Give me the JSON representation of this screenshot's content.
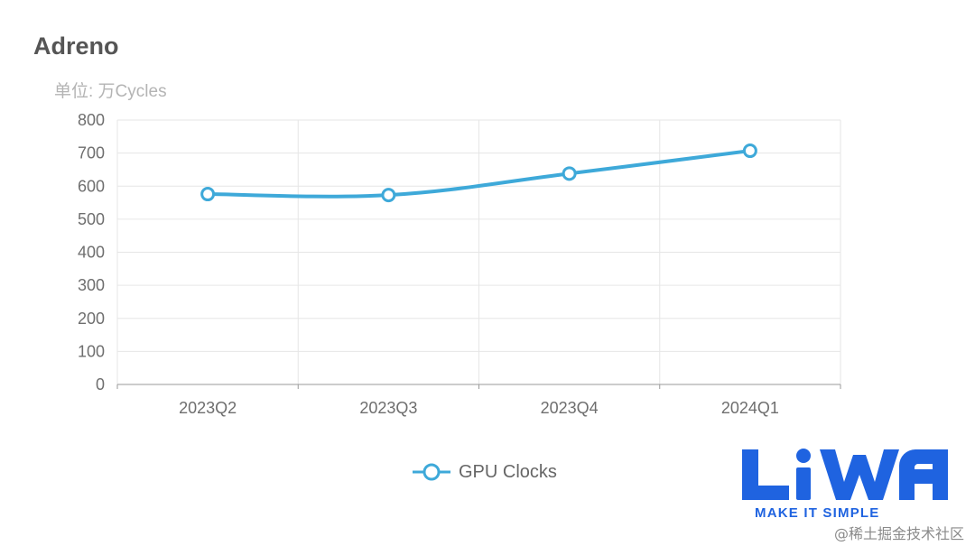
{
  "title": "Adreno",
  "unit_label": "单位: 万Cycles",
  "chart_data": {
    "type": "line",
    "title": "Adreno",
    "subtitle": "单位: 万Cycles",
    "categories": [
      "2023Q2",
      "2023Q3",
      "2023Q4",
      "2024Q1"
    ],
    "series": [
      {
        "name": "GPU Clocks",
        "values": [
          576,
          573,
          638,
          707
        ],
        "color": "#3ea9d9"
      }
    ],
    "ylim": [
      0,
      800
    ],
    "yticks": [
      0,
      100,
      200,
      300,
      400,
      500,
      600,
      700,
      800
    ],
    "grid": true,
    "legend": "bottom-center",
    "smooth": true
  },
  "legend": {
    "label": "GPU Clocks",
    "icon": "circle-line-marker"
  },
  "logo": {
    "text": "LiWA",
    "tagline": "MAKE IT SIMPLE",
    "color": "#1f63e0"
  },
  "watermark": "@稀土掘金技术社区"
}
